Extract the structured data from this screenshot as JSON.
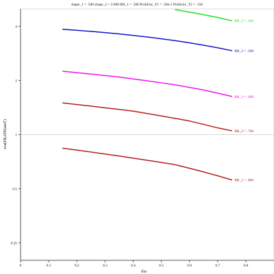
{
  "chart_data": {
    "type": "line",
    "title": "shape_1 = .500  shape_2 = 2.000  RR_1 = .500  ProbUnc_T1 = .50e-1  ProbUnc_T2 = .150",
    "xlabel": "rho",
    "ylabel": "sva(ERATE(tauT)",
    "xscale": "linear",
    "yscale": "log",
    "xlim": [
      0,
      0.9
    ],
    "ylim": [
      0.2,
      5
    ],
    "xticks": [
      0,
      0.1,
      0.2,
      0.3,
      0.4,
      0.5,
      0.6,
      0.7,
      0.8
    ],
    "xtick_labels": [
      "0",
      "0.1",
      "0.2",
      "0.3",
      "0.4",
      "0.5",
      "0.6",
      "0.7",
      "0.8"
    ],
    "yticks": [
      0.25,
      0.5,
      1,
      2,
      4
    ],
    "ytick_labels": [
      "0.25",
      "0.5",
      "1",
      "2",
      "4"
    ],
    "reference_line": 1,
    "grid": false,
    "legend": "none",
    "series": [
      {
        "name": "RR_2 = .450",
        "color": "#22dd22",
        "x": [
          0.55,
          0.6,
          0.65,
          0.7,
          0.75
        ],
        "y": [
          4.95,
          4.8,
          4.64,
          4.48,
          4.3
        ]
      },
      {
        "name": "RR_2 = .500",
        "color": "#1111cc",
        "x": [
          0.15,
          0.2,
          0.25,
          0.3,
          0.35,
          0.4,
          0.45,
          0.5,
          0.55,
          0.6,
          0.65,
          0.7,
          0.75
        ],
        "y": [
          3.85,
          3.8,
          3.75,
          3.69,
          3.63,
          3.56,
          3.49,
          3.41,
          3.33,
          3.24,
          3.14,
          3.04,
          2.93
        ]
      },
      {
        "name": "RR_2 = .600",
        "color": "#ee11ee",
        "x": [
          0.15,
          0.2,
          0.25,
          0.3,
          0.35,
          0.4,
          0.45,
          0.5,
          0.55,
          0.6,
          0.65,
          0.7,
          0.75
        ],
        "y": [
          2.25,
          2.21,
          2.17,
          2.13,
          2.09,
          2.04,
          1.99,
          1.94,
          1.89,
          1.83,
          1.77,
          1.7,
          1.63
        ]
      },
      {
        "name": "RR_2 = .700",
        "color": "#b31c1c",
        "x": [
          0.15,
          0.2,
          0.25,
          0.3,
          0.35,
          0.4,
          0.45,
          0.5,
          0.55,
          0.6,
          0.65,
          0.7,
          0.75
        ],
        "y": [
          1.5,
          1.47,
          1.44,
          1.41,
          1.38,
          1.35,
          1.31,
          1.27,
          1.23,
          1.19,
          1.14,
          1.09,
          1.05
        ]
      },
      {
        "name": "RR_2 = .800",
        "color": "#b31c1c",
        "x": [
          0.15,
          0.2,
          0.25,
          0.3,
          0.35,
          0.4,
          0.45,
          0.5,
          0.55,
          0.6,
          0.65,
          0.7,
          0.75
        ],
        "y": [
          0.84,
          0.82,
          0.8,
          0.78,
          0.76,
          0.74,
          0.72,
          0.7,
          0.68,
          0.65,
          0.62,
          0.59,
          0.56
        ]
      }
    ]
  }
}
